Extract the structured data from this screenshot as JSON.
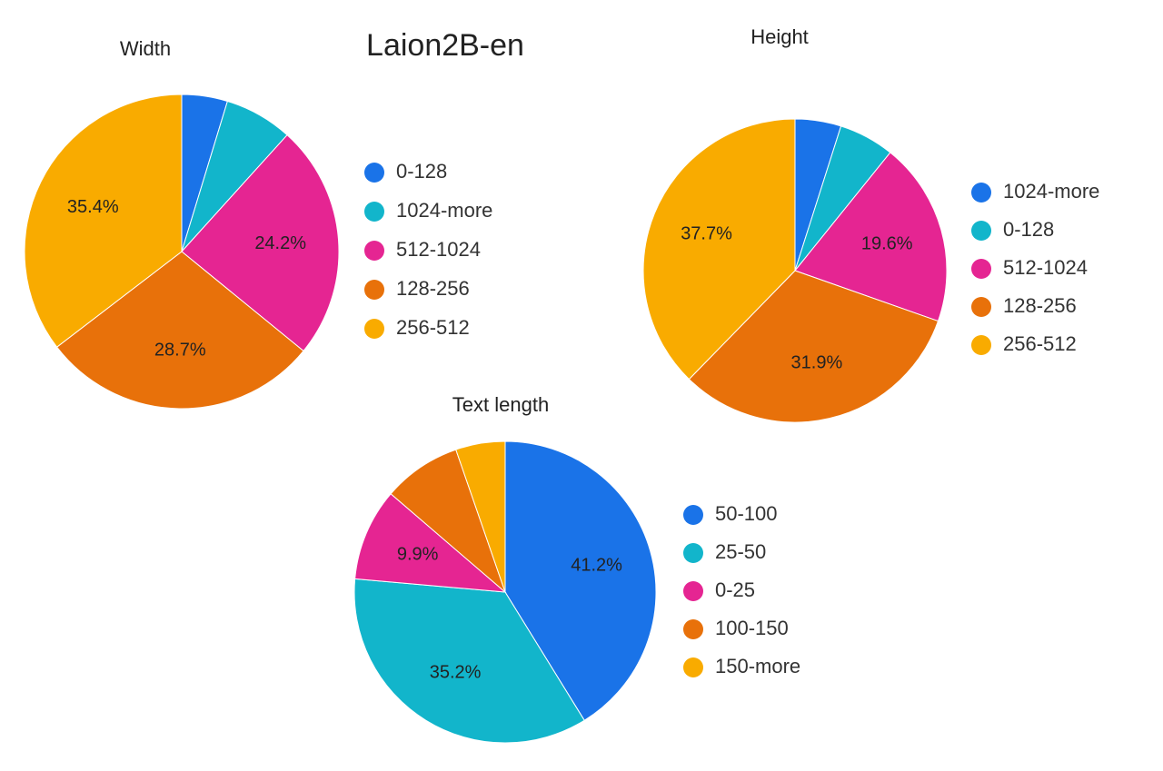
{
  "title": "Laion2B-en",
  "chart_data": [
    {
      "type": "pie",
      "title": "Width",
      "categories": [
        "0-128",
        "1024-more",
        "512-1024",
        "128-256",
        "256-512"
      ],
      "values": [
        4.7,
        7.0,
        24.2,
        28.7,
        35.4
      ],
      "value_labels": [
        null,
        null,
        "24.2%",
        "28.7%",
        "35.4%"
      ],
      "colors": [
        "#1a73e8",
        "#12b5cb",
        "#e52592",
        "#e8710a",
        "#f9ab00"
      ]
    },
    {
      "type": "pie",
      "title": "Height",
      "categories": [
        "1024-more",
        "0-128",
        "512-1024",
        "128-256",
        "256-512"
      ],
      "values": [
        4.9,
        5.9,
        19.6,
        31.9,
        37.7
      ],
      "value_labels": [
        null,
        null,
        "19.6%",
        "31.9%",
        "37.7%"
      ],
      "colors": [
        "#1a73e8",
        "#12b5cb",
        "#e52592",
        "#e8710a",
        "#f9ab00"
      ]
    },
    {
      "type": "pie",
      "title": "Text length",
      "categories": [
        "50-100",
        "25-50",
        "0-25",
        "100-150",
        "150-more"
      ],
      "values": [
        41.2,
        35.2,
        9.9,
        8.4,
        5.3
      ],
      "value_labels": [
        "41.2%",
        "35.2%",
        "9.9%",
        null,
        null
      ],
      "colors": [
        "#1a73e8",
        "#12b5cb",
        "#e52592",
        "#e8710a",
        "#f9ab00"
      ]
    }
  ]
}
